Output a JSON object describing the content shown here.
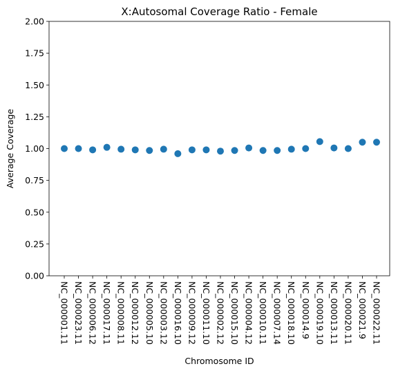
{
  "chart_data": {
    "type": "scatter",
    "title": "X:Autosomal Coverage Ratio - Female",
    "xlabel": "Chromosome ID",
    "ylabel": "Average Coverage",
    "ylim": [
      0,
      2
    ],
    "yticks": [
      "0.00",
      "0.25",
      "0.50",
      "0.75",
      "1.00",
      "1.25",
      "1.50",
      "1.75",
      "2.00"
    ],
    "grid": false,
    "marker_color": "#1f77b4",
    "categories": [
      "NC_000001.11",
      "NC_000023.11",
      "NC_000006.12",
      "NC_000017.11",
      "NC_000008.11",
      "NC_000012.12",
      "NC_000005.10",
      "NC_000003.12",
      "NC_000016.10",
      "NC_000009.12",
      "NC_000011.10",
      "NC_000002.12",
      "NC_000015.10",
      "NC_000004.12",
      "NC_000010.11",
      "NC_000007.14",
      "NC_000018.10",
      "NC_000014.9",
      "NC_000019.10",
      "NC_000013.11",
      "NC_000020.11",
      "NC_000021.9",
      "NC_000022.11"
    ],
    "values": [
      1.0,
      1.0,
      0.99,
      1.01,
      0.995,
      0.99,
      0.985,
      0.995,
      0.96,
      0.99,
      0.99,
      0.98,
      0.985,
      1.005,
      0.985,
      0.985,
      0.995,
      1.0,
      1.055,
      1.005,
      1.0,
      1.05,
      1.05
    ]
  }
}
